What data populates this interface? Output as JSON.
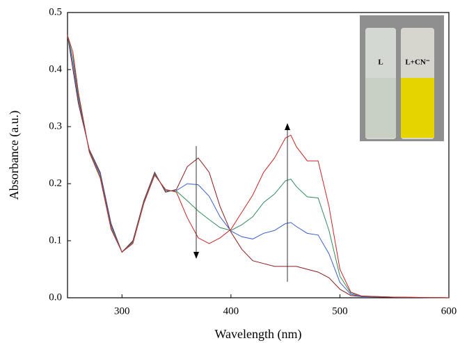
{
  "chart_data": {
    "type": "line",
    "x_label": "Wavelength (nm)",
    "y_label": "Absorbance (a.u.)",
    "x": [
      250,
      255,
      260,
      270,
      280,
      290,
      300,
      310,
      320,
      330,
      340,
      350,
      360,
      370,
      380,
      390,
      400,
      410,
      420,
      430,
      440,
      450,
      455,
      460,
      470,
      480,
      490,
      500,
      510,
      520,
      550,
      600
    ],
    "series": [
      {
        "color": "#8b1a1a",
        "values": [
          0.46,
          0.4,
          0.34,
          0.26,
          0.22,
          0.13,
          0.08,
          0.1,
          0.17,
          0.22,
          0.185,
          0.19,
          0.23,
          0.245,
          0.22,
          0.16,
          0.115,
          0.085,
          0.065,
          0.06,
          0.055,
          0.055,
          0.055,
          0.055,
          0.05,
          0.045,
          0.035,
          0.015,
          0.004,
          0.002,
          0.001,
          0.0
        ]
      },
      {
        "color": "#3a5fcd",
        "values": [
          0.46,
          0.41,
          0.347,
          0.258,
          0.217,
          0.127,
          0.08,
          0.098,
          0.168,
          0.218,
          0.187,
          0.188,
          0.2,
          0.198,
          0.178,
          0.142,
          0.117,
          0.107,
          0.103,
          0.113,
          0.118,
          0.13,
          0.132,
          0.125,
          0.113,
          0.11,
          0.077,
          0.027,
          0.006,
          0.002,
          0.001,
          0.0
        ]
      },
      {
        "color": "#2e8b57",
        "values": [
          0.46,
          0.42,
          0.353,
          0.257,
          0.213,
          0.123,
          0.08,
          0.097,
          0.167,
          0.217,
          0.188,
          0.187,
          0.17,
          0.152,
          0.137,
          0.123,
          0.118,
          0.128,
          0.142,
          0.167,
          0.182,
          0.205,
          0.208,
          0.195,
          0.177,
          0.175,
          0.118,
          0.038,
          0.008,
          0.003,
          0.001,
          0.0
        ]
      },
      {
        "color": "#cc2222",
        "values": [
          0.46,
          0.43,
          0.36,
          0.255,
          0.21,
          0.12,
          0.08,
          0.095,
          0.165,
          0.215,
          0.19,
          0.185,
          0.14,
          0.105,
          0.095,
          0.105,
          0.12,
          0.15,
          0.18,
          0.22,
          0.245,
          0.28,
          0.285,
          0.265,
          0.24,
          0.24,
          0.16,
          0.05,
          0.01,
          0.003,
          0.001,
          0.0
        ]
      }
    ],
    "xlim": [
      250,
      600
    ],
    "xticks": [
      300,
      400,
      500,
      600
    ],
    "ylim": [
      0,
      0.5
    ],
    "yticks": [
      {
        "value": 0,
        "label": "0.0"
      },
      0.1,
      0.2,
      0.3,
      0.4,
      0.5
    ],
    "annotations": [
      "L",
      "L+CN⁻"
    ]
  }
}
